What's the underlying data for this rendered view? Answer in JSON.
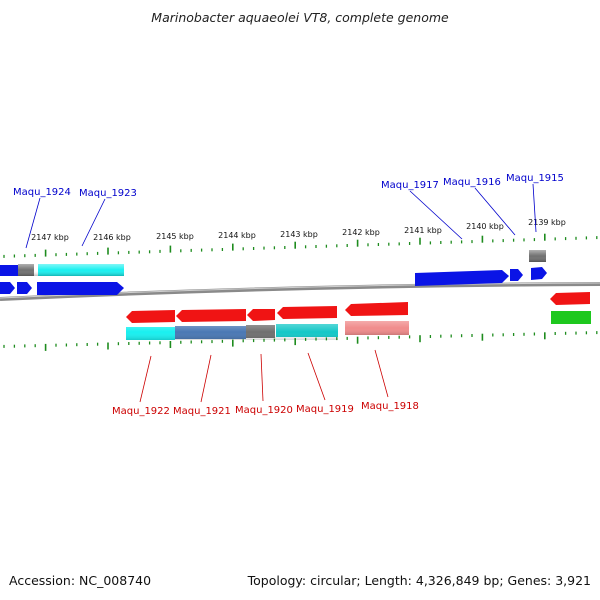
{
  "title": "Marinobacter aquaeolei VT8, complete genome",
  "footer": {
    "accession": "Accession: NC_008740",
    "topology": "Topology: circular; Length: 4,326,849 bp; Genes: 3,921"
  },
  "scale_labels": [
    "2147 kbp",
    "2146 kbp",
    "2145 kbp",
    "2144 kbp",
    "2143 kbp",
    "2142 kbp",
    "2141 kbp",
    "2140 kbp",
    "2139 kbp"
  ],
  "top_gene_labels": [
    "Maqu_1924",
    "Maqu_1923",
    "Maqu_1917",
    "Maqu_1916",
    "Maqu_1915"
  ],
  "bottom_gene_labels": [
    "Maqu_1922",
    "Maqu_1921",
    "Maqu_1920",
    "Maqu_1919",
    "Maqu_1918"
  ],
  "colors": {
    "blue": "#0a14e6",
    "cyan": "#19f0f0",
    "gray": "#707070",
    "red": "#f01414",
    "steel": "#4a78b4",
    "teal": "#14c8c8",
    "pink": "#f08c8c",
    "green": "#1ec81e",
    "backbone": "#8a8a8a",
    "tick": "#1e8c1e",
    "label_top": "#0000cc",
    "label_bottom": "#cc0000"
  }
}
